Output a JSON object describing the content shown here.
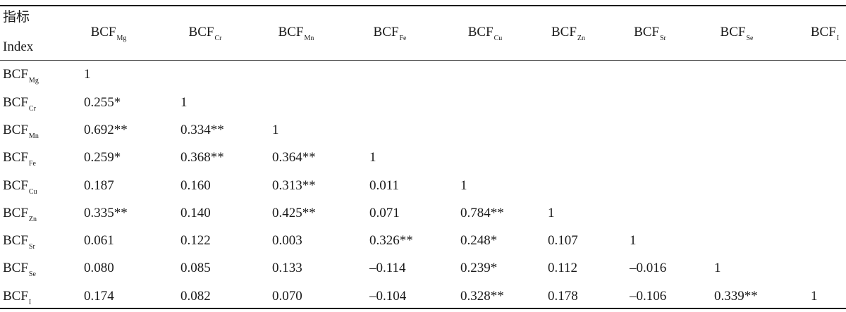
{
  "header": {
    "stub_cn": "指标",
    "stub_en": "Index",
    "columns": [
      {
        "base": "BCF",
        "sub": "Mg"
      },
      {
        "base": "BCF",
        "sub": "Cr"
      },
      {
        "base": "BCF",
        "sub": "Mn"
      },
      {
        "base": "BCF",
        "sub": "Fe"
      },
      {
        "base": "BCF",
        "sub": "Cu"
      },
      {
        "base": "BCF",
        "sub": "Zn"
      },
      {
        "base": "BCF",
        "sub": "Sr"
      },
      {
        "base": "BCF",
        "sub": "Se"
      },
      {
        "base": "BCF",
        "sub": "I"
      }
    ]
  },
  "rows": [
    {
      "base": "BCF",
      "sub": "Mg",
      "cells": [
        "1"
      ]
    },
    {
      "base": "BCF",
      "sub": "Cr",
      "cells": [
        "0.255*",
        "1"
      ]
    },
    {
      "base": "BCF",
      "sub": "Mn",
      "cells": [
        "0.692**",
        "0.334**",
        "1"
      ]
    },
    {
      "base": "BCF",
      "sub": "Fe",
      "cells": [
        "0.259*",
        "0.368**",
        "0.364**",
        "1"
      ]
    },
    {
      "base": "BCF",
      "sub": "Cu",
      "cells": [
        "0.187",
        "0.160",
        "0.313**",
        "0.011",
        "1"
      ]
    },
    {
      "base": "BCF",
      "sub": "Zn",
      "cells": [
        "0.335**",
        "0.140",
        "0.425**",
        "0.071",
        "0.784**",
        "1"
      ]
    },
    {
      "base": "BCF",
      "sub": "Sr",
      "cells": [
        "0.061",
        "0.122",
        "0.003",
        "0.326**",
        "0.248*",
        "0.107",
        "1"
      ]
    },
    {
      "base": "BCF",
      "sub": "Se",
      "cells": [
        "0.080",
        "0.085",
        "0.133",
        "–0.114",
        "0.239*",
        "0.112",
        "–0.016",
        "1"
      ]
    },
    {
      "base": "BCF",
      "sub": "I",
      "cells": [
        "0.174",
        "0.082",
        "0.070",
        "–0.104",
        "0.328**",
        "0.178",
        "–0.106",
        "0.339**",
        "1"
      ]
    }
  ]
}
